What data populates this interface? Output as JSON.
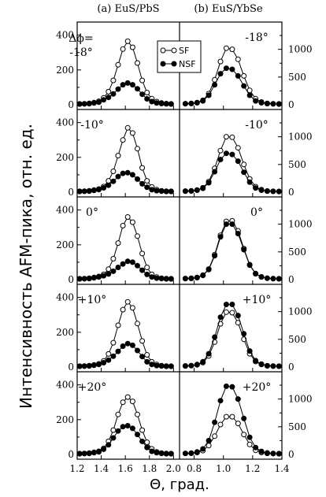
{
  "panel_titles": {
    "left": "(a) EuS/PbS",
    "right": "(b) EuS/YbSe"
  },
  "ylabel": "Интенсивность AFM-пика, отн. ед.",
  "xlabel": "Θ, град.",
  "delta_phi_label": "Δϕ=",
  "legend": {
    "sf": "SF",
    "nsf": "NSF"
  },
  "left_axis": {
    "xlim": [
      1.2,
      2.05
    ],
    "ylim": [
      0,
      430
    ],
    "xticks": [
      "1.2",
      "1.4",
      "1.6",
      "1.8",
      "2.0"
    ],
    "yticks": [
      "0",
      "200",
      "400"
    ]
  },
  "right_axis": {
    "xlim": [
      0.7,
      1.4
    ],
    "ylim": [
      0,
      1350
    ],
    "xticks": [
      "0.8",
      "1.0",
      "1.2",
      "1.4"
    ],
    "yticks": [
      "0",
      "500",
      "1000"
    ]
  },
  "rows": [
    {
      "angle_label": "-18°"
    },
    {
      "angle_label": "-10°"
    },
    {
      "angle_label": "0°"
    },
    {
      "angle_label": "+10°"
    },
    {
      "angle_label": "+20°"
    }
  ],
  "chart_data": [
    {
      "type": "line",
      "title": "(a) EuS/PbS",
      "xlabel": "Θ, град.",
      "ylabel": "Интенсивность AFM-пика, отн. ед.",
      "xlim": [
        1.2,
        2.05
      ],
      "ylim": [
        0,
        430
      ],
      "x": [
        1.22,
        1.26,
        1.3,
        1.34,
        1.38,
        1.42,
        1.46,
        1.5,
        1.54,
        1.58,
        1.62,
        1.66,
        1.7,
        1.74,
        1.78,
        1.82,
        1.86,
        1.9,
        1.94,
        1.98
      ],
      "panels": [
        {
          "angle": "-18°",
          "series": [
            {
              "name": "SF",
              "values": [
                5,
                6,
                8,
                12,
                20,
                40,
                75,
                140,
                230,
                320,
                365,
                330,
                240,
                140,
                70,
                35,
                18,
                10,
                7,
                5
              ]
            },
            {
              "name": "NSF",
              "values": [
                4,
                5,
                6,
                10,
                15,
                28,
                42,
                62,
                90,
                115,
                125,
                115,
                92,
                60,
                34,
                18,
                10,
                7,
                5,
                4
              ]
            }
          ]
        },
        {
          "angle": "-10°",
          "series": [
            {
              "name": "SF",
              "values": [
                5,
                6,
                8,
                12,
                18,
                32,
                65,
                120,
                210,
                300,
                370,
                340,
                250,
                140,
                65,
                30,
                15,
                8,
                6,
                5
              ]
            },
            {
              "name": "NSF",
              "values": [
                4,
                5,
                6,
                10,
                15,
                25,
                40,
                62,
                90,
                108,
                112,
                100,
                75,
                48,
                28,
                14,
                8,
                6,
                4,
                4
              ]
            }
          ]
        },
        {
          "angle": "0°",
          "series": [
            {
              "name": "SF",
              "values": [
                5,
                6,
                8,
                12,
                18,
                30,
                60,
                120,
                210,
                310,
                360,
                330,
                250,
                150,
                70,
                30,
                15,
                8,
                6,
                5
              ]
            },
            {
              "name": "NSF",
              "values": [
                4,
                5,
                6,
                10,
                15,
                22,
                32,
                48,
                70,
                90,
                105,
                100,
                80,
                54,
                30,
                15,
                8,
                6,
                4,
                4
              ]
            }
          ]
        },
        {
          "angle": "+10°",
          "series": [
            {
              "name": "SF",
              "values": [
                5,
                6,
                8,
                12,
                18,
                35,
                75,
                140,
                240,
                330,
                375,
                340,
                250,
                150,
                70,
                30,
                15,
                8,
                6,
                5
              ]
            },
            {
              "name": "NSF",
              "values": [
                4,
                5,
                6,
                10,
                15,
                25,
                40,
                62,
                90,
                120,
                135,
                125,
                95,
                60,
                30,
                15,
                8,
                6,
                4,
                4
              ]
            }
          ]
        },
        {
          "angle": "+20°",
          "series": [
            {
              "name": "SF",
              "values": [
                5,
                6,
                8,
                12,
                18,
                35,
                75,
                140,
                230,
                300,
                330,
                305,
                230,
                140,
                70,
                32,
                15,
                8,
                6,
                5
              ]
            },
            {
              "name": "NSF",
              "values": [
                4,
                5,
                6,
                10,
                15,
                30,
                55,
                95,
                135,
                160,
                165,
                150,
                115,
                75,
                40,
                18,
                10,
                6,
                4,
                4
              ]
            }
          ]
        }
      ]
    },
    {
      "type": "line",
      "title": "(b) EuS/YbSe",
      "xlabel": "Θ, град.",
      "ylabel": "Интенсивность AFM-пика, отн. ед.",
      "xlim": [
        0.7,
        1.4
      ],
      "ylim": [
        0,
        1350
      ],
      "x": [
        0.74,
        0.78,
        0.82,
        0.86,
        0.9,
        0.94,
        0.98,
        1.02,
        1.06,
        1.1,
        1.14,
        1.18,
        1.22,
        1.26,
        1.3,
        1.34,
        1.38
      ],
      "panels": [
        {
          "angle": "-18°",
          "series": [
            {
              "name": "SF",
              "values": [
                20,
                25,
                40,
                80,
                200,
                450,
                780,
                1020,
                1000,
                820,
                520,
                260,
                110,
                50,
                25,
                18,
                15
              ]
            },
            {
              "name": "NSF",
              "values": [
                18,
                22,
                35,
                70,
                170,
                360,
                560,
                660,
                640,
                520,
                340,
                170,
                70,
                35,
                20,
                15,
                12
              ]
            }
          ]
        },
        {
          "angle": "-10°",
          "series": [
            {
              "name": "SF",
              "values": [
                20,
                25,
                40,
                80,
                190,
                430,
                750,
                1000,
                990,
                800,
                500,
                240,
                100,
                45,
                22,
                16,
                14
              ]
            },
            {
              "name": "NSF",
              "values": [
                18,
                22,
                35,
                70,
                170,
                370,
                590,
                700,
                680,
                560,
                360,
                180,
                75,
                35,
                20,
                15,
                12
              ]
            }
          ]
        },
        {
          "angle": "0°",
          "series": [
            {
              "name": "SF",
              "values": [
                20,
                25,
                40,
                80,
                190,
                450,
                800,
                1050,
                1060,
                880,
                560,
                270,
                110,
                50,
                25,
                18,
                15
              ]
            },
            {
              "name": "NSF",
              "values": [
                18,
                22,
                35,
                75,
                180,
                430,
                770,
                1000,
                1000,
                830,
                540,
                260,
                105,
                48,
                24,
                17,
                14
              ]
            }
          ]
        },
        {
          "angle": "+10°",
          "series": [
            {
              "name": "SF",
              "values": [
                20,
                25,
                40,
                80,
                200,
                450,
                780,
                990,
                980,
                800,
                500,
                240,
                100,
                45,
                22,
                16,
                14
              ]
            },
            {
              "name": "NSF",
              "values": [
                20,
                25,
                45,
                95,
                240,
                540,
                900,
                1130,
                1130,
                930,
                600,
                290,
                115,
                52,
                26,
                18,
                15
              ]
            }
          ]
        },
        {
          "angle": "+20°",
          "series": [
            {
              "name": "SF",
              "values": [
                18,
                22,
                35,
                70,
                160,
                330,
                540,
                680,
                680,
                560,
                360,
                180,
                75,
                35,
                20,
                15,
                12
              ]
            },
            {
              "name": "NSF",
              "values": [
                20,
                25,
                45,
                100,
                250,
                580,
                970,
                1230,
                1220,
                1000,
                650,
                310,
                125,
                55,
                28,
                18,
                15
              ]
            }
          ]
        }
      ]
    }
  ]
}
